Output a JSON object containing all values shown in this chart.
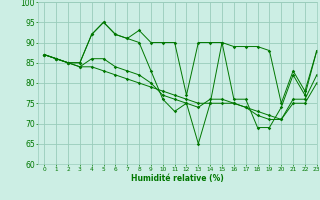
{
  "xlabel": "Humidité relative (%)",
  "background_color": "#cceee4",
  "grid_color": "#99ccbb",
  "line_color": "#007700",
  "xlim": [
    -0.5,
    23
  ],
  "ylim": [
    60,
    100
  ],
  "xticks": [
    0,
    1,
    2,
    3,
    4,
    5,
    6,
    7,
    8,
    9,
    10,
    11,
    12,
    13,
    14,
    15,
    16,
    17,
    18,
    19,
    20,
    21,
    22,
    23
  ],
  "yticks": [
    60,
    65,
    70,
    75,
    80,
    85,
    90,
    95,
    100
  ],
  "series": [
    [
      87,
      86,
      85,
      85,
      92,
      95,
      92,
      91,
      93,
      90,
      90,
      90,
      77,
      90,
      90,
      90,
      89,
      89,
      89,
      88,
      75,
      83,
      78,
      88
    ],
    [
      87,
      86,
      85,
      85,
      92,
      95,
      92,
      91,
      90,
      83,
      76,
      73,
      75,
      65,
      75,
      90,
      76,
      76,
      69,
      69,
      74,
      82,
      77,
      88
    ],
    [
      87,
      86,
      85,
      84,
      86,
      86,
      84,
      83,
      82,
      80,
      77,
      76,
      75,
      74,
      76,
      76,
      75,
      74,
      72,
      71,
      71,
      76,
      76,
      82
    ],
    [
      87,
      86,
      85,
      84,
      84,
      83,
      82,
      81,
      80,
      79,
      78,
      77,
      76,
      75,
      75,
      75,
      75,
      74,
      73,
      72,
      71,
      75,
      75,
      80
    ]
  ]
}
